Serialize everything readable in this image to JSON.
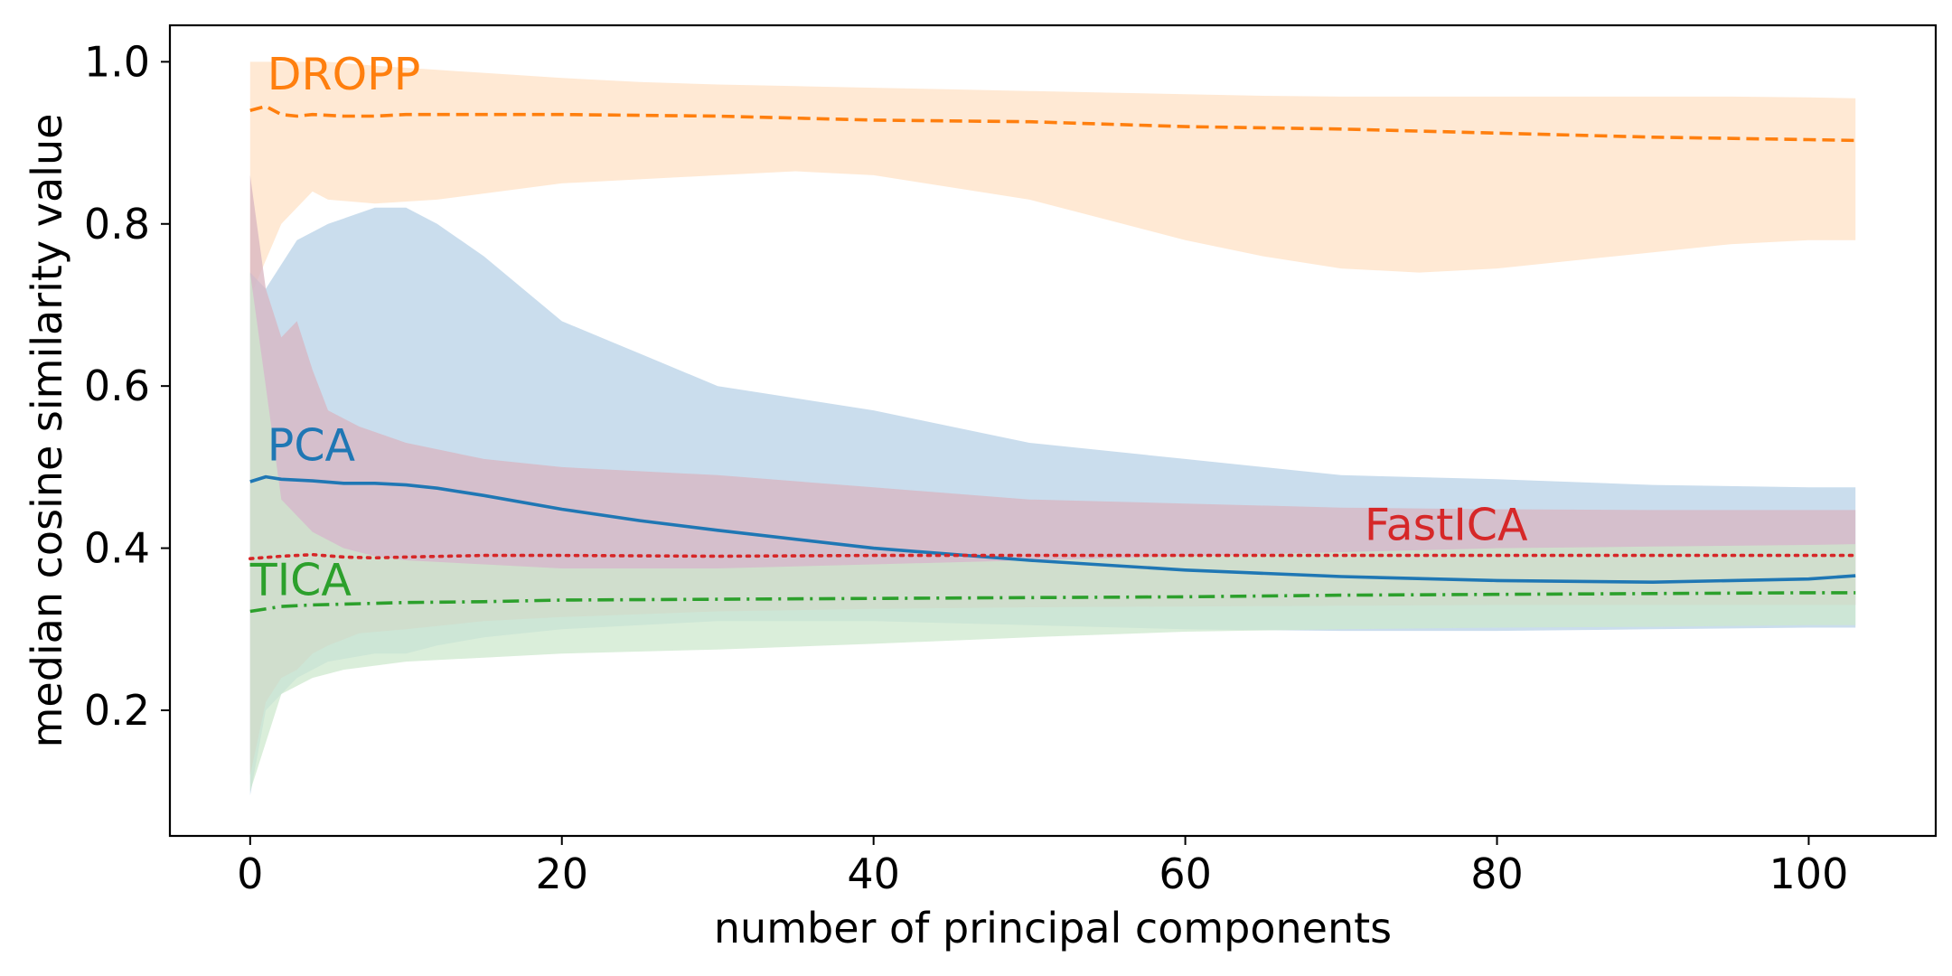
{
  "chart_data": {
    "type": "line",
    "title": "",
    "xlabel": "number of principal components",
    "ylabel": "median cosine similarity value",
    "xlim": [
      -5.15,
      108.15
    ],
    "ylim": [
      0.045,
      1.045
    ],
    "xticks": [
      0,
      20,
      40,
      60,
      80,
      100
    ],
    "yticks": [
      0.2,
      0.4,
      0.6,
      0.8,
      1.0
    ],
    "xtick_labels": [
      "0",
      "20",
      "40",
      "60",
      "80",
      "100"
    ],
    "ytick_labels": [
      "0.2",
      "0.4",
      "0.6",
      "0.8",
      "1.0"
    ],
    "grid": false,
    "legend": "none (inline labels)",
    "series": [
      {
        "name": "DROPP",
        "color": "#ff7f0e",
        "band_color": "#ffe2c5",
        "line_style": "dashed",
        "x": [
          0,
          1,
          2,
          3,
          4,
          6,
          8,
          10,
          15,
          20,
          30,
          40,
          50,
          60,
          70,
          80,
          90,
          100,
          103
        ],
        "y": [
          0.94,
          0.945,
          0.935,
          0.933,
          0.935,
          0.933,
          0.933,
          0.935,
          0.935,
          0.935,
          0.933,
          0.928,
          0.926,
          0.92,
          0.917,
          0.912,
          0.907,
          0.904,
          0.903
        ],
        "band_x": [
          0,
          2,
          4,
          5,
          8,
          12,
          16,
          20,
          25,
          30,
          35,
          40,
          45,
          50,
          55,
          60,
          65,
          70,
          75,
          80,
          85,
          90,
          95,
          100,
          103
        ],
        "band_upper": [
          1.0,
          1.0,
          1.0,
          1.0,
          0.995,
          0.99,
          0.985,
          0.98,
          0.975,
          0.972,
          0.97,
          0.968,
          0.966,
          0.964,
          0.962,
          0.96,
          0.958,
          0.957,
          0.957,
          0.957,
          0.957,
          0.957,
          0.957,
          0.956,
          0.955
        ],
        "band_lower": [
          0.71,
          0.8,
          0.84,
          0.83,
          0.825,
          0.83,
          0.84,
          0.85,
          0.855,
          0.86,
          0.865,
          0.86,
          0.845,
          0.83,
          0.805,
          0.78,
          0.76,
          0.745,
          0.74,
          0.745,
          0.755,
          0.765,
          0.775,
          0.78,
          0.78
        ]
      },
      {
        "name": "PCA",
        "color": "#1f77b4",
        "band_color": "#b8d2e7",
        "line_style": "solid",
        "x": [
          0,
          1,
          2,
          4,
          6,
          8,
          10,
          12,
          15,
          20,
          25,
          30,
          40,
          50,
          60,
          70,
          80,
          90,
          100,
          103
        ],
        "y": [
          0.482,
          0.488,
          0.485,
          0.483,
          0.48,
          0.48,
          0.478,
          0.474,
          0.465,
          0.448,
          0.434,
          0.422,
          0.4,
          0.385,
          0.373,
          0.365,
          0.36,
          0.358,
          0.362,
          0.366
        ],
        "band_x": [
          0,
          1,
          2,
          3,
          5,
          8,
          10,
          12,
          15,
          20,
          25,
          30,
          40,
          50,
          60,
          70,
          80,
          90,
          100,
          103
        ],
        "band_upper": [
          0.74,
          0.72,
          0.75,
          0.78,
          0.8,
          0.82,
          0.82,
          0.8,
          0.76,
          0.68,
          0.64,
          0.6,
          0.57,
          0.53,
          0.51,
          0.49,
          0.485,
          0.478,
          0.475,
          0.475
        ],
        "band_lower": [
          0.095,
          0.2,
          0.22,
          0.24,
          0.26,
          0.27,
          0.27,
          0.28,
          0.29,
          0.3,
          0.305,
          0.31,
          0.31,
          0.305,
          0.3,
          0.298,
          0.298,
          0.3,
          0.302,
          0.302
        ]
      },
      {
        "name": "FastICA",
        "color": "#d62728",
        "band_color": "#d8b4c0",
        "line_style": "dotted",
        "x": [
          0,
          2,
          4,
          6,
          8,
          10,
          15,
          20,
          30,
          40,
          50,
          60,
          70,
          80,
          90,
          100,
          103
        ],
        "y": [
          0.387,
          0.39,
          0.392,
          0.389,
          0.388,
          0.389,
          0.391,
          0.391,
          0.39,
          0.391,
          0.391,
          0.391,
          0.391,
          0.391,
          0.391,
          0.391,
          0.391
        ],
        "band_x": [
          0,
          1,
          2,
          3,
          4,
          5,
          7,
          10,
          15,
          20,
          30,
          40,
          50,
          60,
          70,
          80,
          90,
          100,
          103
        ],
        "band_upper": [
          0.86,
          0.72,
          0.66,
          0.68,
          0.62,
          0.57,
          0.55,
          0.53,
          0.51,
          0.5,
          0.49,
          0.475,
          0.46,
          0.455,
          0.45,
          0.448,
          0.447,
          0.447,
          0.447
        ],
        "band_lower": [
          0.12,
          0.21,
          0.24,
          0.25,
          0.27,
          0.28,
          0.295,
          0.3,
          0.31,
          0.315,
          0.322,
          0.325,
          0.327,
          0.328,
          0.329,
          0.33,
          0.33,
          0.33,
          0.33
        ]
      },
      {
        "name": "TICA",
        "color": "#2ca02c",
        "band_color": "#cde8cd",
        "line_style": "dashdot",
        "x": [
          0,
          2,
          4,
          6,
          8,
          10,
          15,
          20,
          30,
          40,
          50,
          60,
          70,
          80,
          90,
          100,
          103
        ],
        "y": [
          0.322,
          0.328,
          0.33,
          0.331,
          0.332,
          0.333,
          0.334,
          0.336,
          0.337,
          0.338,
          0.339,
          0.34,
          0.342,
          0.343,
          0.344,
          0.345,
          0.345
        ],
        "band_x": [
          0,
          2,
          4,
          6,
          8,
          10,
          15,
          20,
          30,
          40,
          50,
          60,
          70,
          80,
          90,
          100,
          103
        ],
        "band_upper": [
          0.74,
          0.46,
          0.42,
          0.4,
          0.39,
          0.385,
          0.38,
          0.375,
          0.375,
          0.38,
          0.385,
          0.39,
          0.395,
          0.4,
          0.402,
          0.404,
          0.405
        ],
        "band_lower": [
          0.1,
          0.22,
          0.24,
          0.25,
          0.255,
          0.26,
          0.265,
          0.27,
          0.275,
          0.282,
          0.29,
          0.297,
          0.3,
          0.302,
          0.303,
          0.305,
          0.305
        ]
      }
    ],
    "annotations": [
      {
        "text": "DROPP",
        "color": "#ff7f0e",
        "x": 1.1,
        "y": 0.966
      },
      {
        "text": "PCA",
        "color": "#1f77b4",
        "x": 1.1,
        "y": 0.508
      },
      {
        "text": "FastICA",
        "color": "#d62728",
        "x": 71.5,
        "y": 0.41
      },
      {
        "text": "TICA",
        "color": "#2ca02c",
        "x": 0,
        "y": 0.342
      }
    ]
  }
}
